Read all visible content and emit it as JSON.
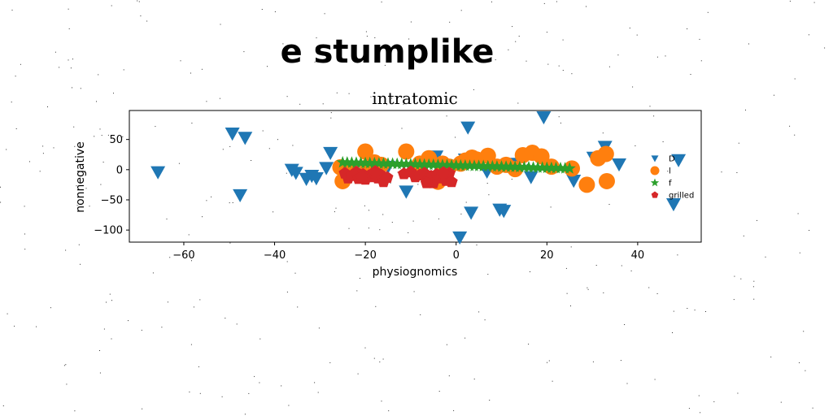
{
  "figure": {
    "suptitle": "e stumplike"
  },
  "chart_data": {
    "type": "scatter",
    "title": "intratomic",
    "xlabel": "physiognomics",
    "ylabel": "nonnegative",
    "xlim": [
      -72,
      54
    ],
    "ylim": [
      -120,
      98
    ],
    "xticks": [
      -60,
      -40,
      -20,
      0,
      20,
      40
    ],
    "yticks": [
      -100,
      -50,
      0,
      50
    ],
    "grid": false,
    "legend_position": "right",
    "series": [
      {
        "name": "D",
        "marker": "triangle-down",
        "color": "#1f77b4",
        "x": [
          -65.7,
          -49.3,
          -46.5,
          -47.6,
          -36.2,
          -35.3,
          -33.0,
          -31.8,
          -30.8,
          -28.6,
          -27.7,
          -11.0,
          -4.4,
          0.8,
          2.0,
          2.6,
          3.3,
          6.8,
          9.6,
          10.5,
          16.5,
          19.3,
          25.9,
          30.3,
          32.8,
          35.9,
          47.9,
          49.0,
          12.5,
          -15.0
        ],
        "y": [
          -4,
          60,
          53,
          -42,
          0,
          -5,
          -15,
          -10,
          -14,
          3,
          28,
          -36,
          22,
          -112,
          17,
          70,
          -71,
          -3,
          -66,
          -68,
          -12,
          87,
          -18,
          20,
          38,
          9,
          -57,
          16,
          10,
          5
        ]
      },
      {
        "name": "l",
        "marker": "circle",
        "color": "#ff7f0e",
        "x": [
          -25.5,
          -25.0,
          -20.0,
          -19.4,
          -18.0,
          -16.5,
          -11.0,
          -6.0,
          -4.0,
          -3.0,
          -1.5,
          1.0,
          2.0,
          3.5,
          4.5,
          7.0,
          9.0,
          11.0,
          13.0,
          14.7,
          16.8,
          18.8,
          25.5,
          28.8,
          31.3,
          33.0,
          33.2,
          -23.0,
          -8.0,
          21.0
        ],
        "y": [
          4,
          -19,
          30,
          5,
          12,
          8,
          30,
          19,
          -20,
          10,
          5,
          10,
          15,
          20,
          17,
          23,
          5,
          8,
          1,
          24,
          28,
          22,
          2,
          -25,
          19,
          26,
          -19,
          -5,
          10,
          5
        ]
      },
      {
        "name": "f",
        "marker": "star",
        "color": "#2ca02c",
        "x": [
          -25,
          -24,
          -23,
          -22,
          -21,
          -20,
          -19,
          -18,
          -17,
          -16,
          -15,
          -14,
          -13,
          -12,
          -11,
          -10,
          -9,
          -8,
          -7,
          -6,
          -5,
          -4,
          -3,
          -2,
          -1,
          0,
          1,
          2,
          3,
          4,
          5,
          6,
          7,
          8,
          9,
          10,
          11,
          12,
          13,
          14,
          15,
          16,
          17,
          18,
          19,
          20,
          21,
          22,
          23,
          24,
          25
        ],
        "y": [
          12.0,
          11.8,
          11.6,
          11.4,
          11.2,
          11.0,
          10.8,
          10.6,
          10.4,
          10.2,
          10.0,
          9.8,
          9.6,
          9.4,
          9.2,
          9.0,
          8.8,
          8.6,
          8.4,
          8.2,
          8.0,
          7.8,
          7.6,
          7.4,
          7.2,
          7.0,
          6.8,
          6.6,
          6.4,
          6.2,
          6.0,
          5.8,
          5.6,
          5.4,
          5.2,
          5.0,
          4.8,
          4.6,
          4.4,
          4.2,
          4.0,
          3.8,
          3.6,
          3.4,
          3.2,
          3.0,
          2.8,
          2.6,
          2.4,
          2.2,
          2.0
        ]
      },
      {
        "name": "grilled",
        "marker": "pentagon",
        "color": "#d62728",
        "x": [
          -24.5,
          -23.8,
          -23.0,
          -22.0,
          -21.5,
          -20.5,
          -20.0,
          -19.2,
          -18.5,
          -18.0,
          -17.2,
          -16.5,
          -16.0,
          -15.2,
          -11.5,
          -10.0,
          -9.0,
          -8.0,
          -7.0,
          -6.0,
          -5.5,
          -5.0,
          -4.3,
          -3.5,
          -3.0,
          -2.2,
          -1.5,
          -1.0,
          -20.8,
          -17.8,
          -6.5,
          -2.8
        ],
        "y": [
          -6,
          -14,
          -10,
          -4,
          -15,
          -8,
          -16,
          -10,
          -12,
          -6,
          -14,
          -9,
          -20,
          -13,
          -7,
          -4,
          -12,
          -9,
          -6,
          -16,
          -11,
          -22,
          -8,
          -14,
          -10,
          -18,
          -6,
          -20,
          -12,
          -3,
          -22,
          -5
        ]
      }
    ]
  }
}
